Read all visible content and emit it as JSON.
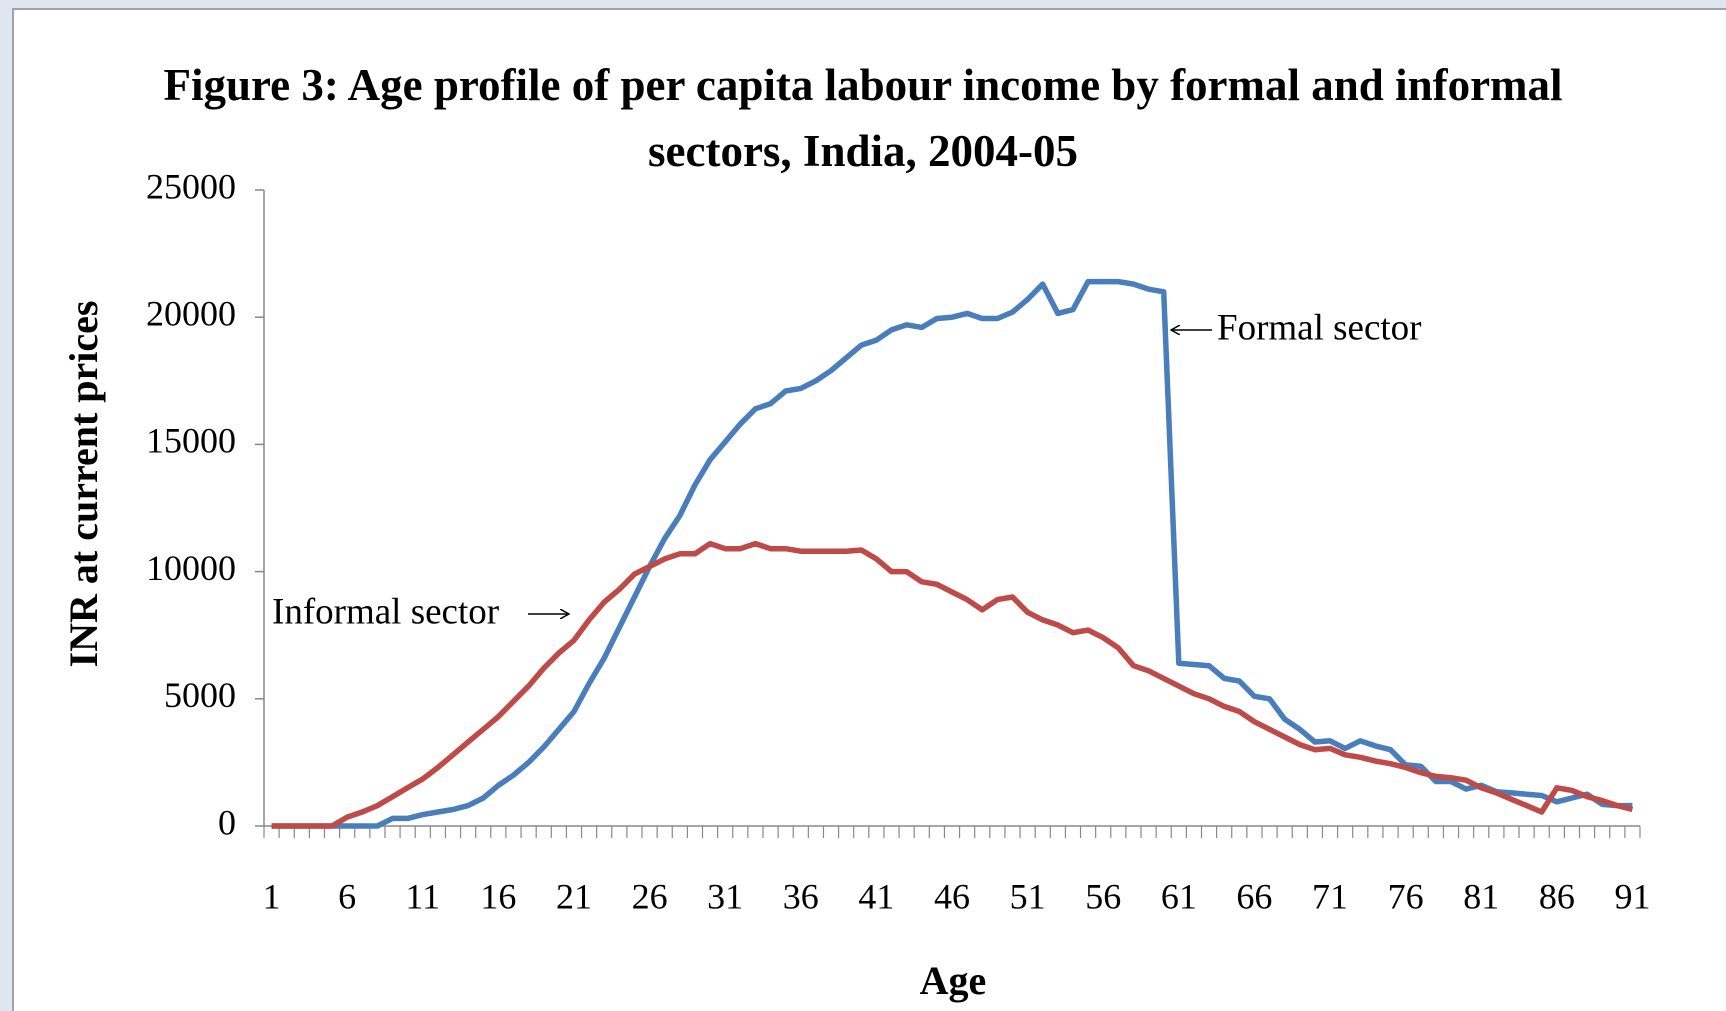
{
  "chart_data": {
    "type": "line",
    "title": "Figure  3: Age profile of per capita labour income by formal and informal sectors, India, 2004-05",
    "x_label": "Age",
    "y_label": "INR at current prices",
    "categories": [
      "1",
      null,
      null,
      null,
      null,
      "6",
      null,
      null,
      null,
      null,
      "11",
      null,
      null,
      null,
      null,
      "16",
      null,
      null,
      null,
      null,
      "21",
      null,
      null,
      null,
      null,
      "26",
      null,
      null,
      null,
      null,
      "31",
      null,
      null,
      null,
      null,
      "36",
      null,
      null,
      null,
      null,
      "41",
      null,
      null,
      null,
      null,
      "46",
      null,
      null,
      null,
      null,
      "51",
      null,
      null,
      null,
      null,
      "56",
      null,
      null,
      null,
      null,
      "61",
      null,
      null,
      null,
      null,
      "66",
      null,
      null,
      null,
      null,
      "71",
      null,
      null,
      null,
      null,
      "76",
      null,
      null,
      null,
      null,
      "81",
      null,
      null,
      null,
      null,
      "86",
      null,
      null,
      null,
      null,
      "91"
    ],
    "ylim": [
      0,
      25000
    ],
    "yticks": [
      0,
      5000,
      10000,
      15000,
      20000,
      25000
    ],
    "grid": false,
    "series": [
      {
        "name": "Formal sector",
        "color": "#4a7ebb",
        "values": [
          0,
          0,
          0,
          0,
          0,
          0,
          0,
          0,
          300,
          300,
          450,
          550,
          650,
          800,
          1100,
          1600,
          2000,
          2500,
          3100,
          3800,
          4500,
          5600,
          6600,
          7800,
          9000,
          10200,
          11300,
          12200,
          13400,
          14400,
          15100,
          15800,
          16400,
          16600,
          17100,
          17200,
          17500,
          17900,
          18400,
          18900,
          19100,
          19500,
          19700,
          19600,
          19950,
          20000,
          20150,
          19950,
          19950,
          20200,
          20700,
          21300,
          20150,
          20300,
          21400,
          21400,
          21400,
          21300,
          21100,
          21000,
          6400,
          6350,
          6300,
          5800,
          5700,
          5100,
          5000,
          4200,
          3800,
          3300,
          3350,
          3050,
          3350,
          3150,
          3000,
          2400,
          2350,
          1750,
          1750,
          1450,
          1600,
          1350,
          1300,
          1250,
          1200,
          950,
          1100,
          1250,
          850,
          800,
          800
        ]
      },
      {
        "name": "Informal sector",
        "color": "#be4b48",
        "values": [
          0,
          0,
          0,
          0,
          0,
          350,
          550,
          800,
          1150,
          1500,
          1850,
          2300,
          2800,
          3300,
          3800,
          4300,
          4900,
          5500,
          6200,
          6800,
          7300,
          8100,
          8800,
          9300,
          9900,
          10200,
          10500,
          10700,
          10700,
          11100,
          10900,
          10900,
          11100,
          10900,
          10900,
          10800,
          10800,
          10800,
          10800,
          10850,
          10500,
          10000,
          10000,
          9600,
          9500,
          9200,
          8900,
          8500,
          8900,
          9000,
          8400,
          8100,
          7900,
          7600,
          7700,
          7400,
          7000,
          6300,
          6100,
          5800,
          5500,
          5200,
          5000,
          4700,
          4500,
          4100,
          3800,
          3500,
          3200,
          3000,
          3050,
          2800,
          2700,
          2550,
          2450,
          2300,
          2100,
          1950,
          1900,
          1800,
          1500,
          1300,
          1050,
          800,
          550,
          1500,
          1400,
          1150,
          1000,
          800,
          650
        ]
      }
    ]
  }
}
